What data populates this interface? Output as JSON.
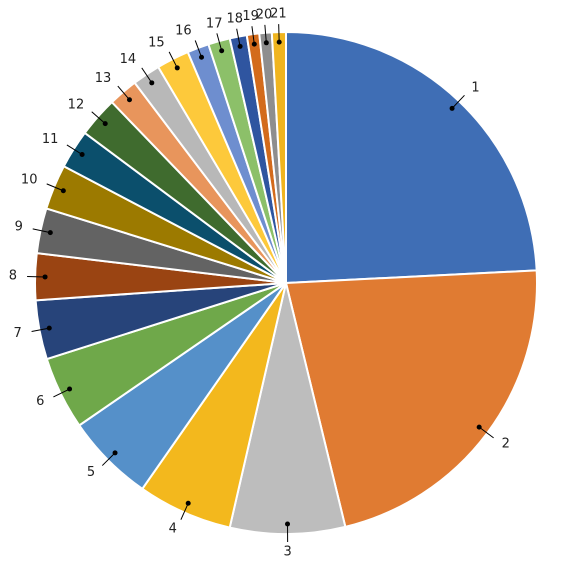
{
  "chart_data": {
    "type": "pie",
    "categories": [
      "1",
      "2",
      "3",
      "4",
      "5",
      "6",
      "7",
      "8",
      "9",
      "10",
      "11",
      "12",
      "13",
      "14",
      "15",
      "16",
      "17",
      "18",
      "19",
      "20",
      "21"
    ],
    "values": [
      24.2,
      22,
      7.4,
      6.1,
      5.7,
      4.7,
      3.8,
      3,
      2.9,
      2.9,
      2.5,
      2.6,
      1.9,
      1.8,
      2.1,
      1.4,
      1.4,
      1.1,
      0.8,
      0.8,
      0.9
    ],
    "colors": [
      "#3f6eb5",
      "#e07b32",
      "#bdbdbd",
      "#f3b81d",
      "#5590c9",
      "#6fa84a",
      "#27447a",
      "#9a4412",
      "#636363",
      "#9c7a00",
      "#0b4f6c",
      "#3f6b2e",
      "#e8955c",
      "#b8b8b8",
      "#fdc93b",
      "#6e8ecf",
      "#8cc069",
      "#2f55a0",
      "#d36b1c",
      "#8e8e8e",
      "#f0b51f"
    ]
  }
}
